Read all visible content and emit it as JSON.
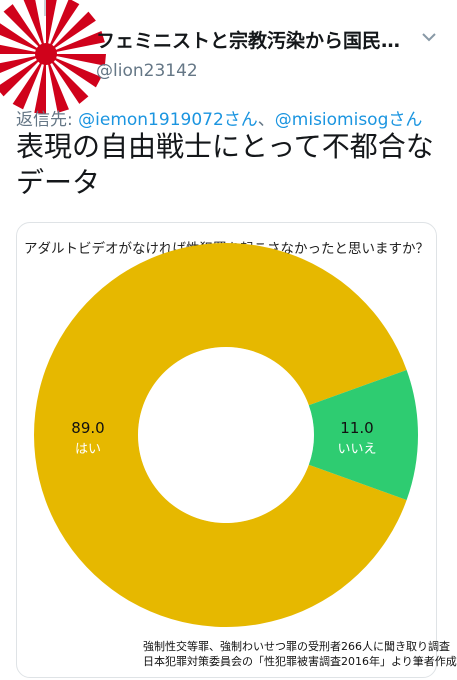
{
  "tweet": {
    "display_name": "フェミニストと宗教汚染から国民…",
    "handle": "@lion23142",
    "reply_prefix": "返信先: ",
    "mention_1": "@iemon1919072さん",
    "reply_separator": "、",
    "mention_2": "@misiomisogさん",
    "text": "表現の自由戦士にとって不都合なデータ"
  },
  "icons": {
    "avatar": "rising-sun-flag-avatar",
    "menu": "chevron-down-icon"
  },
  "colors": {
    "yes": "#e6b800",
    "no": "#2ecc71",
    "mention": "#1b95e0"
  },
  "chart_data": {
    "type": "pie",
    "style": "donut",
    "title": "アダルトビデオがなければ性犯罪を起こさなかったと思いますか？",
    "slices": [
      {
        "label": "はい",
        "value": 89.0,
        "value_text": "89.0",
        "color": "#e6b800"
      },
      {
        "label": "いいえ",
        "value": 11.0,
        "value_text": "11.0",
        "color": "#2ecc71"
      }
    ],
    "notes": [
      "強制性交等罪、強制わいせつ罪の受刑者266人に聞き取り調査",
      "日本犯罪対策委員会の「性犯罪被害調査2016年」より筆者作成"
    ]
  }
}
